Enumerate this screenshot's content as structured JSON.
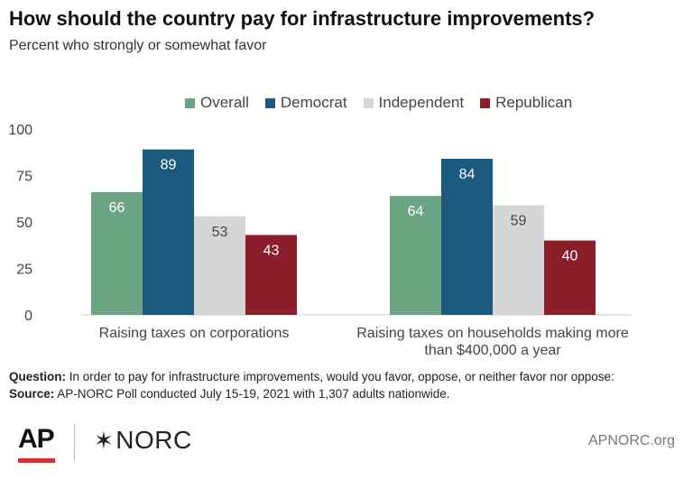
{
  "title": "How should the country pay for infrastructure improvements?",
  "subtitle": "Percent who strongly or somewhat favor",
  "chart_data": {
    "type": "bar",
    "categories": [
      "Raising taxes on corporations",
      "Raising taxes on households making more than  $400,000 a year"
    ],
    "category_lines": [
      [
        "Raising taxes on corporations"
      ],
      [
        "Raising taxes on households making more",
        "than  $400,000 a year"
      ]
    ],
    "series": [
      {
        "name": "Overall",
        "color": "#6ba583",
        "values": [
          66,
          64
        ]
      },
      {
        "name": "Democrat",
        "color": "#1b5a7e",
        "values": [
          89,
          84
        ]
      },
      {
        "name": "Independent",
        "color": "#d6d6d6",
        "values": [
          53,
          59
        ]
      },
      {
        "name": "Republican",
        "color": "#8a1f2b",
        "values": [
          43,
          40
        ]
      }
    ],
    "ylim": [
      0,
      100
    ],
    "yticks": [
      0,
      25,
      50,
      75,
      100
    ],
    "legend_position": "top",
    "grid": false
  },
  "notes": {
    "question_label": "Question:",
    "question_text": " In order to pay for infrastructure improvements, would you favor, oppose, or neither favor nor oppose:",
    "source_label": "Source:",
    "source_text": " AP-NORC Poll conducted July 15-19, 2021 with 1,307 adults nationwide."
  },
  "footer": {
    "ap_logo": "AP",
    "norc_logo": "NORC",
    "site": "APNORC.org"
  }
}
